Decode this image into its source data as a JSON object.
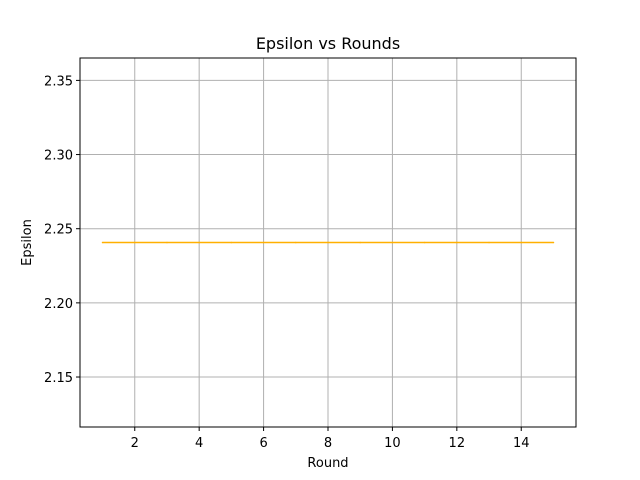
{
  "chart_data": {
    "type": "line",
    "title": "Epsilon vs Rounds",
    "xlabel": "Round",
    "ylabel": "Epsilon",
    "x": [
      1,
      2,
      3,
      4,
      5,
      6,
      7,
      8,
      9,
      10,
      11,
      12,
      13,
      14,
      15
    ],
    "series": [
      {
        "values": [
          2.2407,
          2.2407,
          2.2407,
          2.2407,
          2.2407,
          2.2407,
          2.2407,
          2.2407,
          2.2407,
          2.2407,
          2.2407,
          2.2407,
          2.2407,
          2.2407,
          2.2407
        ],
        "color": "#ffb000"
      }
    ],
    "xticks": [
      2,
      4,
      6,
      8,
      10,
      12,
      14
    ],
    "yticks": [
      2.15,
      2.2,
      2.25,
      2.3,
      2.35
    ],
    "ytick_labels": [
      "2.15",
      "2.20",
      "2.25",
      "2.30",
      "2.35"
    ],
    "xlim": [
      0.3,
      15.7
    ],
    "ylim": [
      2.1163,
      2.3651
    ],
    "grid": true
  }
}
